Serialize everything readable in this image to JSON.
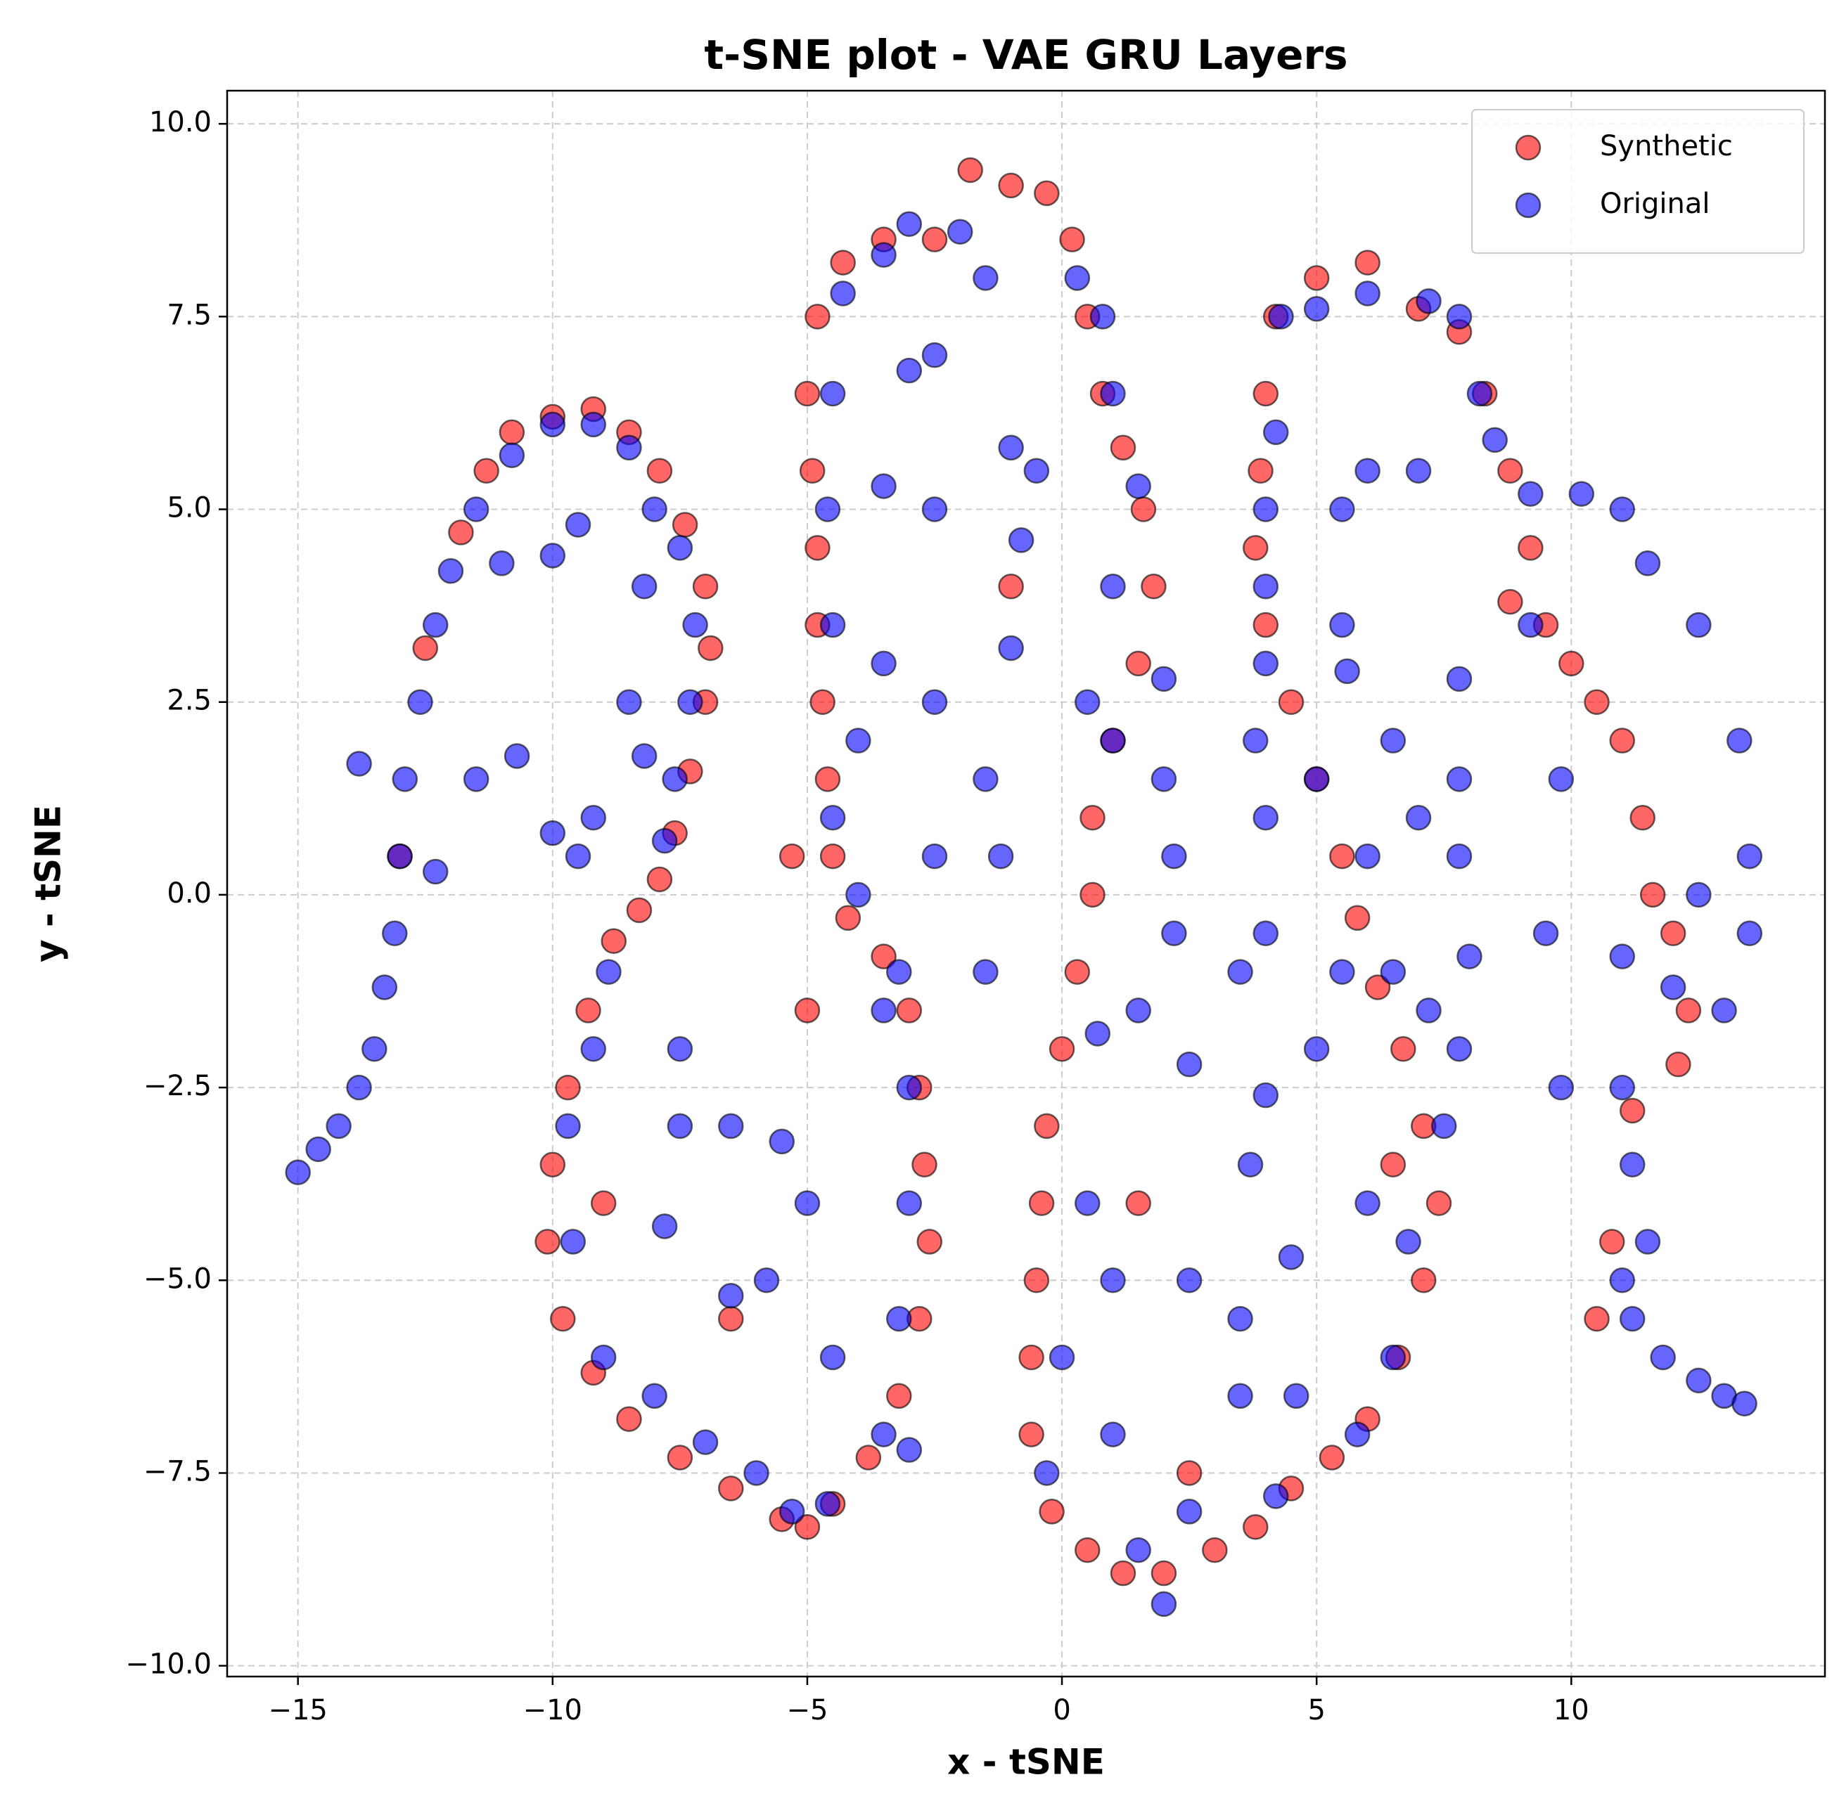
{
  "chart_data": {
    "type": "scatter",
    "title": "t-SNE plot - VAE GRU Layers",
    "xlabel": "x - tSNE",
    "ylabel": "y - tSNE",
    "xlim": [
      -16.39,
      14.98
    ],
    "ylim": [
      -10.14,
      10.43
    ],
    "xticks": [
      {
        "value": -15,
        "label": "−15"
      },
      {
        "value": -10,
        "label": "−10"
      },
      {
        "value": -5,
        "label": "−5"
      },
      0,
      5,
      10
    ],
    "yticks": [
      {
        "value": -10,
        "label": "−10.0"
      },
      {
        "value": -7.5,
        "label": "−7.5"
      },
      {
        "value": -5,
        "label": "−5.0"
      },
      {
        "value": -2.5,
        "label": "−2.5"
      },
      {
        "value": 0,
        "label": "0.0"
      },
      {
        "value": 2.5,
        "label": "2.5"
      },
      {
        "value": 5,
        "label": "5.0"
      },
      {
        "value": 7.5,
        "label": "7.5"
      },
      {
        "value": 10,
        "label": "10.0"
      }
    ],
    "grid": true,
    "legend": "upper right",
    "alpha": 0.6,
    "edgecolor": "#000000",
    "series": [
      {
        "name": "Synthetic",
        "color": "#ff0000",
        "x": [
          -11.8,
          -11.3,
          -10.8,
          -10,
          -9.2,
          -8.5,
          -7.9,
          -7.4,
          -7,
          -6.9,
          -7,
          -7.3,
          -7.6,
          -7.9,
          -8.3,
          -8.8,
          -9.3,
          -9.7,
          -10,
          -10.1,
          -9.8,
          -9.2,
          -8.5,
          -7.5,
          -6.5,
          -5.5,
          -5,
          -4.5,
          -3.8,
          -3.2,
          -2.8,
          -2.6,
          -2.7,
          -2.8,
          -3,
          -3.5,
          -4.2,
          -4.5,
          -4.6,
          -4.7,
          -4.8,
          -4.8,
          -4.9,
          -5,
          -4.8,
          -4.3,
          -3.5,
          -2.5,
          -1.8,
          -1,
          -0.3,
          0.2,
          0.5,
          0.8,
          1.2,
          1.6,
          1.8,
          1.5,
          1.0,
          0.6,
          0.6,
          0.3,
          0,
          -0.3,
          -0.4,
          -0.5,
          -0.6,
          -0.6,
          -0.2,
          0.5,
          1.2,
          2,
          3,
          3.8,
          4.5,
          5.3,
          6,
          6.6,
          7.1,
          7.4,
          7.1,
          6.7,
          6.2,
          5.8,
          5.5,
          5,
          4.5,
          4,
          3.8,
          3.9,
          4,
          4.2,
          5,
          6,
          7,
          7.8,
          8.3,
          8.8,
          9.2,
          9.5,
          10,
          10.5,
          11,
          11.4,
          11.6,
          12,
          12.3,
          12.1,
          11.2,
          10.8,
          10.5,
          -12.5,
          -13,
          -5.3,
          -5,
          1.5,
          -1,
          2.5,
          8.8,
          -6.5,
          -9,
          6.5
        ],
        "values": [
          4.7,
          5.5,
          6.0,
          6.2,
          6.3,
          6.0,
          5.5,
          4.8,
          4,
          3.2,
          2.5,
          1.6,
          0.8,
          0.2,
          -0.2,
          -0.6,
          -1.5,
          -2.5,
          -3.5,
          -4.5,
          -5.5,
          -6.2,
          -6.8,
          -7.3,
          -7.7,
          -8.1,
          -8.2,
          -7.9,
          -7.3,
          -6.5,
          -5.5,
          -4.5,
          -3.5,
          -2.5,
          -1.5,
          -0.8,
          -0.3,
          0.5,
          1.5,
          2.5,
          3.5,
          4.5,
          5.5,
          6.5,
          7.5,
          8.2,
          8.5,
          8.5,
          9.4,
          9.2,
          9.1,
          8.5,
          7.5,
          6.5,
          5.8,
          5,
          4,
          3,
          2,
          1,
          0,
          -1,
          -2,
          -3,
          -4,
          -5,
          -6,
          -7,
          -8,
          -8.5,
          -8.8,
          -8.8,
          -8.5,
          -8.2,
          -7.7,
          -7.3,
          -6.8,
          -6,
          -5,
          -4,
          -3,
          -2,
          -1.2,
          -0.3,
          0.5,
          1.5,
          2.5,
          3.5,
          4.5,
          5.5,
          6.5,
          7.5,
          8,
          8.2,
          7.6,
          7.3,
          6.5,
          5.5,
          4.5,
          3.5,
          3,
          2.5,
          2,
          1,
          0,
          -0.5,
          -1.5,
          -2.2,
          -2.8,
          -4.5,
          -5.5,
          3.2,
          0.5,
          0.5,
          -1.5,
          -4,
          4,
          -7.5,
          3.8,
          -5.5,
          -4,
          -3.5
        ]
      },
      {
        "name": "Original",
        "color": "#0000ff",
        "x": [
          -15,
          -14.6,
          -14.2,
          -13.8,
          -13.5,
          -13.3,
          -13.1,
          -13,
          -12.9,
          -12.6,
          -12.3,
          -12,
          -11.5,
          -10.8,
          -10,
          -9.2,
          -8.5,
          -8,
          -7.5,
          -7.2,
          -7.3,
          -7.6,
          -7.8,
          -11,
          -10,
          -9.5,
          -10.7,
          -11.5,
          -10,
          -9.5,
          -9.2,
          -12.3,
          -13.8,
          -8.2,
          -8.5,
          -8.2,
          -8.9,
          -9.2,
          -9.7,
          -9.6,
          -9,
          -8,
          -7,
          -6,
          -5.3,
          -4.6,
          -7.8,
          -7.5,
          -7.5,
          -6.5,
          -5.5,
          -5,
          -5.8,
          -6.5,
          -4.5,
          -3.5,
          -3,
          -3.2,
          -3,
          -3,
          -3.2,
          -3.5,
          -4,
          -4.5,
          -4,
          -3.5,
          -4.5,
          -4.6,
          -4.5,
          -4.3,
          -3.5,
          -3,
          -2,
          -1.5,
          -2.5,
          -3,
          -2.5,
          -3.5,
          -2.5,
          -1.5,
          -1.2,
          -1.5,
          -2.5,
          -1,
          -0.5,
          -0.8,
          -1,
          0.3,
          0.8,
          1,
          1.5,
          1,
          0.5,
          1,
          2,
          2,
          2.2,
          2.2,
          2.5,
          1.5,
          0.7,
          0.5,
          1,
          2.5,
          3.5,
          0,
          -0.3,
          1,
          1.5,
          2,
          2.5,
          3.5,
          4.2,
          4.6,
          4.5,
          3.7,
          4,
          3.5,
          4,
          4,
          3.8,
          4,
          4,
          4,
          4.2,
          4.3,
          5,
          6,
          7.2,
          7.8,
          8.2,
          8.5,
          7,
          6,
          5.5,
          5.5,
          5.6,
          5,
          6,
          5.5,
          6.5,
          7.2,
          7.5,
          7.8,
          8,
          7.8,
          7.8,
          7.8,
          7,
          6.5,
          5,
          6,
          6.8,
          6.5,
          5.8,
          9.2,
          9.2,
          9.8,
          9.5,
          9.8,
          10.2,
          11,
          11.5,
          12.5,
          13.3,
          13.5,
          13.5,
          12.5,
          11,
          11,
          11.2,
          11.5,
          11,
          11.2,
          11.8,
          12.5,
          13,
          13.4,
          12,
          13
        ],
        "values": [
          -3.6,
          -3.3,
          -3,
          -2.5,
          -2,
          -1.2,
          -0.5,
          0.5,
          1.5,
          2.5,
          3.5,
          4.2,
          5,
          5.7,
          6.1,
          6.1,
          5.8,
          5,
          4.5,
          3.5,
          2.5,
          1.5,
          0.7,
          4.3,
          4.4,
          4.8,
          1.8,
          1.5,
          0.8,
          0.5,
          1,
          0.3,
          1.7,
          4,
          2.5,
          1.8,
          -1,
          -2,
          -3,
          -4.5,
          -6,
          -6.5,
          -7.1,
          -7.5,
          -8,
          -7.9,
          -4.3,
          -3,
          -2,
          -3,
          -3.2,
          -4,
          -5,
          -5.2,
          -6,
          -7,
          -7.2,
          -5.5,
          -4,
          -2.5,
          -1,
          -1.5,
          0,
          1,
          2,
          3,
          3.5,
          5,
          6.5,
          7.8,
          8.3,
          8.7,
          8.6,
          8,
          7,
          6.8,
          5,
          5.3,
          2.5,
          1.5,
          0.5,
          -1,
          0.5,
          5.8,
          5.5,
          4.6,
          3.2,
          8,
          7.5,
          6.5,
          5.3,
          4,
          2.5,
          2,
          2.8,
          1.5,
          0.5,
          -0.5,
          -2.2,
          -1.5,
          -1.8,
          -4,
          -5,
          -5,
          -5.5,
          -6,
          -7.5,
          -7,
          -8.5,
          -9.2,
          -8,
          -6.5,
          -7.8,
          -6.5,
          -4.7,
          -3.5,
          -2.6,
          -1,
          -0.5,
          1,
          2,
          3,
          4,
          5,
          6,
          7.5,
          7.6,
          7.8,
          7.7,
          7.5,
          6.5,
          5.9,
          5.5,
          5.5,
          5,
          3.5,
          2.9,
          1.5,
          0.5,
          -1,
          -1,
          -1.5,
          -3,
          -2,
          -0.8,
          0.5,
          1.5,
          2.8,
          1,
          2,
          -2,
          -4,
          -4.5,
          -6,
          -7,
          5.2,
          3.5,
          1.5,
          -0.5,
          -2.5,
          5.2,
          5,
          4.3,
          3.5,
          2,
          0.5,
          -0.5,
          0,
          -0.8,
          -2.5,
          -3.5,
          -4.5,
          -5,
          -5.5,
          -6,
          -6.3,
          -6.5,
          -6.6,
          -1.2,
          -1.5
        ]
      }
    ]
  }
}
